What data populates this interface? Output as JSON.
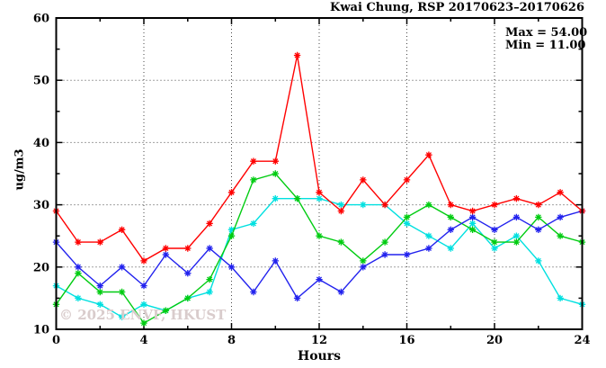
{
  "title": "Kwai Chung, RSP 20170623–20170626",
  "annotation": {
    "max_label": "Max = 54.00",
    "min_label": "Min = 11.00"
  },
  "watermark": "© 2025 ENVF, HKUST",
  "chart_data": {
    "type": "line",
    "title": "Kwai Chung, RSP 20170623–20170626",
    "xlabel": "Hours",
    "ylabel": "ug/m3",
    "xlim": [
      0,
      24
    ],
    "ylim": [
      10,
      60
    ],
    "x_ticks_major": [
      0,
      4,
      8,
      12,
      16,
      20,
      24
    ],
    "x_tick_minor_step": 2,
    "y_ticks_major": [
      10,
      20,
      30,
      40,
      50,
      60
    ],
    "y_tick_minor_step": 5,
    "grid_x": [
      4,
      8,
      12,
      16,
      20
    ],
    "grid_y": [
      20,
      30,
      40,
      50
    ],
    "grid_style": "dotted",
    "legend": "none",
    "x": [
      0,
      1,
      2,
      3,
      4,
      5,
      6,
      7,
      8,
      9,
      10,
      11,
      12,
      13,
      14,
      15,
      16,
      17,
      18,
      19,
      20,
      21,
      22,
      23,
      24
    ],
    "series": [
      {
        "name": "red",
        "color": "#ff0000",
        "values": [
          29,
          24,
          24,
          26,
          21,
          23,
          23,
          27,
          32,
          37,
          37,
          54,
          32,
          29,
          34,
          30,
          34,
          38,
          30,
          29,
          30,
          31,
          30,
          32,
          29
        ]
      },
      {
        "name": "blue",
        "color": "#2222ee",
        "values": [
          24,
          20,
          17,
          20,
          17,
          22,
          19,
          23,
          20,
          16,
          21,
          15,
          18,
          16,
          20,
          22,
          22,
          23,
          26,
          28,
          26,
          28,
          26,
          28,
          29
        ]
      },
      {
        "name": "green",
        "color": "#00cc11",
        "values": [
          14,
          19,
          16,
          16,
          11,
          13,
          15,
          18,
          25,
          34,
          35,
          31,
          25,
          24,
          21,
          24,
          28,
          30,
          28,
          26,
          24,
          24,
          28,
          25,
          24
        ]
      },
      {
        "name": "cyan",
        "color": "#00e0e0",
        "values": [
          17,
          15,
          14,
          12,
          14,
          13,
          15,
          16,
          26,
          27,
          31,
          31,
          31,
          30,
          30,
          30,
          27,
          25,
          23,
          27,
          23,
          25,
          21,
          15,
          14
        ]
      }
    ],
    "stats": {
      "max": 54.0,
      "min": 11.0
    }
  }
}
